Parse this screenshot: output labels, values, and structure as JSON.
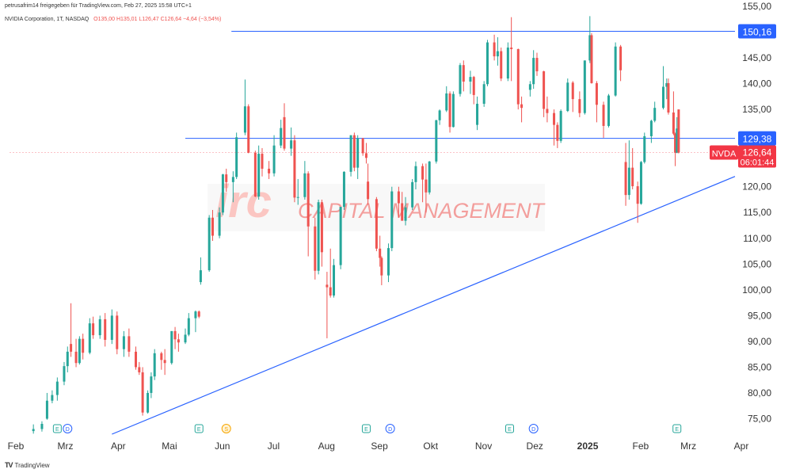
{
  "header": {
    "line1": "petrusafrim14 freigegeben für TradingView.com, Feb 27, 2025 15:58 UTC+1",
    "symbol": "NVIDIA Corporation, 1T, NASDAQ",
    "ohlc": "O135,00  H135,01  L126,47  C126,64  −4,64 (−3,54%)"
  },
  "footer": {
    "brand": "TradingView"
  },
  "watermark": {
    "logo": "irc",
    "text": "CAPITAL MANAGEMENT"
  },
  "colors": {
    "up": "#26a69a",
    "down": "#ef5350",
    "line": "#2962ff",
    "label": "#2962ff",
    "price": "#f23645"
  },
  "events": [
    {
      "x": "2024-02-29",
      "label": "E"
    },
    {
      "x": "2024-03-06",
      "label": "D"
    },
    {
      "x": "2024-05-22",
      "label": "E"
    },
    {
      "x": "2024-06-07",
      "label": "S"
    },
    {
      "x": "2024-08-28",
      "label": "E"
    },
    {
      "x": "2024-09-11",
      "label": "D"
    },
    {
      "x": "2024-11-20",
      "label": "E"
    },
    {
      "x": "2024-12-04",
      "label": "D"
    },
    {
      "x": "2025-02-26",
      "label": "E"
    }
  ],
  "chart_data": {
    "type": "candlestick",
    "title": "NVIDIA Corporation, 1T, NASDAQ",
    "ticker": "NVDA",
    "last_price": "126,64",
    "countdown": "06:01:44",
    "xlim": [
      "2024-02-01",
      "2025-04-01"
    ],
    "ylim": [
      72,
      155
    ],
    "x_ticks": [
      {
        "date": "2024-02-01",
        "label": "Feb"
      },
      {
        "date": "2024-03-01",
        "label": "Mrz"
      },
      {
        "date": "2024-04-01",
        "label": "Apr"
      },
      {
        "date": "2024-05-01",
        "label": "Mai"
      },
      {
        "date": "2024-06-01",
        "label": "Jun"
      },
      {
        "date": "2024-07-01",
        "label": "Jul"
      },
      {
        "date": "2024-08-01",
        "label": "Aug"
      },
      {
        "date": "2024-09-01",
        "label": "Sep"
      },
      {
        "date": "2024-10-01",
        "label": "Okt"
      },
      {
        "date": "2024-11-01",
        "label": "Nov"
      },
      {
        "date": "2024-12-01",
        "label": "Dez"
      },
      {
        "date": "2025-01-01",
        "label": "2025"
      },
      {
        "date": "2025-02-01",
        "label": "Feb"
      },
      {
        "date": "2025-03-01",
        "label": "Mrz"
      },
      {
        "date": "2025-04-01",
        "label": "Apr"
      }
    ],
    "y_ticks": [
      "75,00",
      "80,00",
      "85,00",
      "90,00",
      "95,00",
      "100,00",
      "105,00",
      "110,00",
      "115,00",
      "120,00",
      "125,00",
      "130,00",
      "135,00",
      "140,00",
      "145,00",
      "150,00",
      "155,00"
    ],
    "levels": [
      {
        "value": 150.16,
        "label": "150,16",
        "from": "2024-06-10"
      },
      {
        "value": 129.38,
        "label": "129,38",
        "from": "2024-05-14"
      }
    ],
    "trendline": {
      "from": [
        "2024-04-01",
        72.0
      ],
      "to": [
        "2025-04-01",
        122.0
      ]
    },
    "candles": [
      [
        "2024-02-15",
        72.6,
        73.9,
        72.1,
        73.0
      ],
      [
        "2024-02-20",
        73.0,
        74.5,
        72.5,
        74.0
      ],
      [
        "2024-02-23",
        75.0,
        80.0,
        74.8,
        78.5
      ],
      [
        "2024-02-26",
        78.5,
        80.5,
        78.0,
        79.6
      ],
      [
        "2024-02-29",
        79.6,
        83.0,
        78.5,
        82.2
      ],
      [
        "2024-03-04",
        82.2,
        86.0,
        81.5,
        85.2
      ],
      [
        "2024-03-06",
        85.2,
        89.0,
        84.0,
        88.0
      ],
      [
        "2024-03-08",
        89.5,
        97.4,
        87.0,
        88.0
      ],
      [
        "2024-03-11",
        88.0,
        90.5,
        85.0,
        85.8
      ],
      [
        "2024-03-13",
        85.8,
        91.0,
        85.5,
        90.5
      ],
      [
        "2024-03-15",
        90.5,
        91.5,
        86.5,
        87.8
      ],
      [
        "2024-03-19",
        87.8,
        94.5,
        87.5,
        93.5
      ],
      [
        "2024-03-21",
        93.5,
        94.8,
        90.5,
        91.2
      ],
      [
        "2024-03-25",
        91.2,
        95.0,
        90.5,
        94.3
      ],
      [
        "2024-03-28",
        94.3,
        95.5,
        89.0,
        90.3
      ],
      [
        "2024-04-01",
        90.3,
        96.2,
        89.5,
        95.0
      ],
      [
        "2024-04-04",
        95.0,
        95.8,
        87.5,
        88.5
      ],
      [
        "2024-04-08",
        88.5,
        92.0,
        87.0,
        91.0
      ],
      [
        "2024-04-11",
        91.0,
        92.5,
        87.0,
        88.0
      ],
      [
        "2024-04-15",
        88.0,
        89.0,
        84.5,
        85.0
      ],
      [
        "2024-04-17",
        85.0,
        86.0,
        83.5,
        84.0
      ],
      [
        "2024-04-19",
        84.0,
        85.0,
        75.6,
        76.2
      ],
      [
        "2024-04-22",
        76.2,
        80.5,
        76.0,
        80.0
      ],
      [
        "2024-04-24",
        80.0,
        84.0,
        79.0,
        83.2
      ],
      [
        "2024-04-26",
        83.2,
        88.5,
        82.5,
        87.7
      ],
      [
        "2024-04-30",
        87.7,
        88.0,
        84.5,
        86.4
      ],
      [
        "2024-05-02",
        86.4,
        88.5,
        83.5,
        85.8
      ],
      [
        "2024-05-06",
        85.8,
        92.0,
        85.5,
        92.0
      ],
      [
        "2024-05-08",
        92.0,
        92.8,
        88.5,
        90.4
      ],
      [
        "2024-05-10",
        90.4,
        91.5,
        88.0,
        89.8
      ],
      [
        "2024-05-14",
        89.8,
        92.5,
        89.5,
        91.3
      ],
      [
        "2024-05-16",
        91.3,
        95.5,
        91.0,
        94.5
      ],
      [
        "2024-05-20",
        94.5,
        96.0,
        91.8,
        95.8
      ],
      [
        "2024-05-22",
        95.8,
        96.0,
        94.5,
        94.8
      ],
      [
        "2024-05-23",
        101.5,
        106.3,
        101.0,
        103.8
      ],
      [
        "2024-05-28",
        103.8,
        114.5,
        103.5,
        114.0
      ],
      [
        "2024-05-30",
        114.0,
        115.5,
        109.5,
        110.5
      ],
      [
        "2024-06-03",
        110.5,
        116.0,
        110.0,
        115.0
      ],
      [
        "2024-06-05",
        115.0,
        122.5,
        114.5,
        122.4
      ],
      [
        "2024-06-07",
        122.4,
        123.5,
        119.0,
        120.9
      ],
      [
        "2024-06-11",
        120.9,
        123.0,
        117.0,
        121.9
      ],
      [
        "2024-06-13",
        121.9,
        130.5,
        121.5,
        129.6
      ],
      [
        "2024-06-18",
        130.5,
        140.8,
        130.0,
        135.6
      ],
      [
        "2024-06-20",
        135.6,
        136.0,
        126.5,
        126.6
      ],
      [
        "2024-06-24",
        126.6,
        127.0,
        118.0,
        118.1
      ],
      [
        "2024-06-26",
        118.1,
        128.0,
        117.5,
        126.4
      ],
      [
        "2024-06-28",
        126.4,
        127.5,
        122.0,
        123.5
      ],
      [
        "2024-07-02",
        123.5,
        125.0,
        121.5,
        122.6
      ],
      [
        "2024-07-05",
        122.6,
        130.0,
        122.0,
        128.0
      ],
      [
        "2024-07-09",
        128.0,
        133.0,
        127.5,
        131.4
      ],
      [
        "2024-07-11",
        133.5,
        136.2,
        127.0,
        127.4
      ],
      [
        "2024-07-15",
        127.4,
        131.5,
        126.0,
        129.0
      ],
      [
        "2024-07-17",
        129.0,
        130.0,
        117.0,
        117.9
      ],
      [
        "2024-07-19",
        117.9,
        121.5,
        116.5,
        118.0
      ],
      [
        "2024-07-23",
        118.0,
        125.0,
        117.5,
        122.6
      ],
      [
        "2024-07-25",
        122.6,
        123.0,
        106.5,
        112.3
      ],
      [
        "2024-07-29",
        112.3,
        114.0,
        102.0,
        103.7
      ],
      [
        "2024-07-31",
        103.7,
        117.5,
        103.0,
        117.0
      ],
      [
        "2024-08-02",
        117.0,
        117.5,
        104.5,
        107.3
      ],
      [
        "2024-08-05",
        101.0,
        103.5,
        90.6,
        100.5
      ],
      [
        "2024-08-07",
        100.5,
        108.0,
        98.5,
        98.9
      ],
      [
        "2024-08-09",
        98.9,
        106.0,
        98.5,
        104.8
      ],
      [
        "2024-08-13",
        104.8,
        116.0,
        104.0,
        116.1
      ],
      [
        "2024-08-15",
        116.1,
        123.0,
        115.5,
        122.9
      ],
      [
        "2024-08-19",
        122.9,
        130.0,
        122.0,
        130.0
      ],
      [
        "2024-08-21",
        130.0,
        130.5,
        123.0,
        123.7
      ],
      [
        "2024-08-23",
        123.7,
        130.0,
        121.5,
        129.4
      ],
      [
        "2024-08-26",
        129.4,
        129.5,
        126.0,
        126.5
      ],
      [
        "2024-08-28",
        126.5,
        128.5,
        124.5,
        125.6
      ],
      [
        "2024-08-29",
        121.0,
        124.5,
        116.5,
        117.6
      ],
      [
        "2024-09-03",
        117.6,
        118.0,
        107.5,
        108.0
      ],
      [
        "2024-09-05",
        108.0,
        110.5,
        104.5,
        106.2
      ],
      [
        "2024-09-06",
        106.2,
        106.5,
        100.9,
        102.8
      ],
      [
        "2024-09-10",
        102.8,
        109.0,
        101.5,
        108.1
      ],
      [
        "2024-09-12",
        108.1,
        120.0,
        107.5,
        119.1
      ],
      [
        "2024-09-16",
        119.1,
        120.0,
        114.0,
        116.8
      ],
      [
        "2024-09-18",
        116.8,
        119.0,
        113.5,
        113.4
      ],
      [
        "2024-09-20",
        113.4,
        118.0,
        112.5,
        116.0
      ],
      [
        "2024-09-24",
        116.0,
        121.5,
        115.5,
        120.9
      ],
      [
        "2024-09-26",
        120.9,
        124.9,
        119.5,
        124.0
      ],
      [
        "2024-09-30",
        124.0,
        124.5,
        117.0,
        121.4
      ],
      [
        "2024-10-02",
        121.4,
        124.5,
        115.0,
        118.9
      ],
      [
        "2024-10-04",
        118.9,
        125.0,
        118.5,
        124.9
      ],
      [
        "2024-10-08",
        124.9,
        133.0,
        124.5,
        132.9
      ],
      [
        "2024-10-10",
        132.9,
        135.0,
        132.0,
        134.8
      ],
      [
        "2024-10-14",
        134.8,
        139.5,
        134.5,
        138.1
      ],
      [
        "2024-10-16",
        138.1,
        138.5,
        130.5,
        131.6
      ],
      [
        "2024-10-18",
        131.6,
        138.5,
        131.5,
        138.0
      ],
      [
        "2024-10-22",
        138.0,
        144.0,
        137.5,
        143.6
      ],
      [
        "2024-10-24",
        143.6,
        144.5,
        138.5,
        140.4
      ],
      [
        "2024-10-28",
        140.4,
        142.5,
        138.0,
        141.3
      ],
      [
        "2024-10-30",
        141.3,
        141.5,
        136.0,
        137.8
      ],
      [
        "2024-11-01",
        132.0,
        137.5,
        131.0,
        136.1
      ],
      [
        "2024-11-05",
        136.1,
        140.5,
        135.5,
        139.9
      ],
      [
        "2024-11-07",
        139.9,
        148.5,
        139.5,
        148.0
      ],
      [
        "2024-11-11",
        148.0,
        149.5,
        144.5,
        145.3
      ],
      [
        "2024-11-13",
        145.3,
        149.0,
        143.5,
        146.3
      ],
      [
        "2024-11-15",
        146.3,
        147.0,
        140.5,
        141.0
      ],
      [
        "2024-11-19",
        141.0,
        148.0,
        140.5,
        147.0
      ],
      [
        "2024-11-21",
        147.0,
        152.9,
        140.5,
        146.7
      ],
      [
        "2024-11-25",
        146.7,
        146.8,
        135.0,
        136.0
      ],
      [
        "2024-11-27",
        136.0,
        137.5,
        132.5,
        135.3
      ],
      [
        "2024-12-02",
        138.8,
        140.5,
        137.5,
        139.9
      ],
      [
        "2024-12-04",
        139.9,
        146.5,
        139.0,
        145.0
      ],
      [
        "2024-12-06",
        145.0,
        146.0,
        141.5,
        142.4
      ],
      [
        "2024-12-10",
        142.4,
        142.5,
        133.5,
        135.1
      ],
      [
        "2024-12-12",
        135.1,
        137.5,
        132.5,
        134.3
      ],
      [
        "2024-12-16",
        134.3,
        135.0,
        128.0,
        132.0
      ],
      [
        "2024-12-18",
        132.0,
        132.5,
        127.5,
        128.9
      ],
      [
        "2024-12-20",
        128.9,
        135.0,
        128.5,
        134.7
      ],
      [
        "2024-12-24",
        134.7,
        141.0,
        134.5,
        140.2
      ],
      [
        "2024-12-27",
        140.2,
        140.5,
        134.5,
        137.0
      ],
      [
        "2024-12-31",
        137.0,
        138.5,
        133.5,
        134.3
      ],
      [
        "2025-01-03",
        134.3,
        144.5,
        134.0,
        144.5
      ],
      [
        "2025-01-06",
        144.5,
        153.1,
        144.0,
        149.4
      ],
      [
        "2025-01-07",
        149.4,
        149.8,
        140.0,
        140.1
      ],
      [
        "2025-01-10",
        140.1,
        140.5,
        132.5,
        135.9
      ],
      [
        "2025-01-14",
        135.9,
        136.5,
        129.5,
        131.8
      ],
      [
        "2025-01-17",
        131.8,
        138.0,
        131.5,
        137.7
      ],
      [
        "2025-01-21",
        137.7,
        148.0,
        137.5,
        147.2
      ],
      [
        "2025-01-24",
        147.2,
        147.5,
        140.5,
        142.6
      ],
      [
        "2025-01-27",
        124.8,
        128.5,
        116.3,
        118.4
      ],
      [
        "2025-01-29",
        118.4,
        129.0,
        117.5,
        123.7
      ],
      [
        "2025-01-31",
        123.7,
        127.5,
        119.5,
        120.1
      ],
      [
        "2025-02-03",
        120.1,
        121.0,
        113.0,
        116.7
      ],
      [
        "2025-02-05",
        116.7,
        125.0,
        116.5,
        124.8
      ],
      [
        "2025-02-07",
        124.8,
        130.5,
        124.5,
        129.8
      ],
      [
        "2025-02-11",
        129.8,
        133.0,
        128.5,
        132.8
      ],
      [
        "2025-02-13",
        132.8,
        136.5,
        132.5,
        135.3
      ],
      [
        "2025-02-18",
        135.3,
        143.4,
        135.0,
        139.4
      ],
      [
        "2025-02-20",
        139.4,
        141.0,
        137.0,
        140.1
      ],
      [
        "2025-02-21",
        140.1,
        141.0,
        134.0,
        134.4
      ],
      [
        "2025-02-24",
        134.4,
        138.5,
        130.0,
        130.3
      ],
      [
        "2025-02-25",
        130.3,
        130.5,
        124.0,
        126.6
      ],
      [
        "2025-02-26",
        126.6,
        133.5,
        126.5,
        131.3
      ],
      [
        "2025-02-27",
        135.0,
        135.01,
        126.47,
        126.64
      ]
    ]
  }
}
